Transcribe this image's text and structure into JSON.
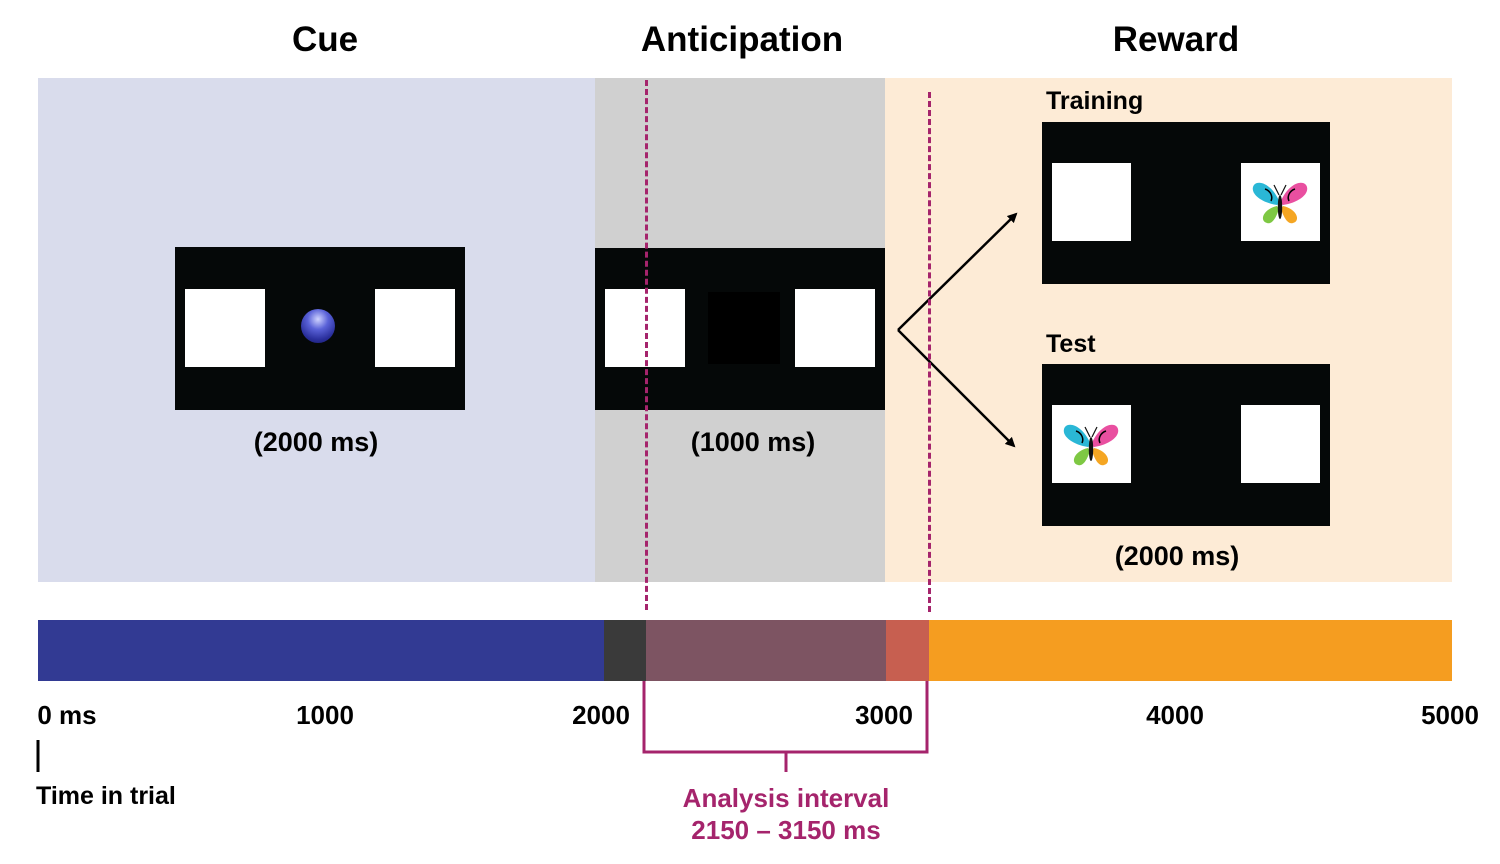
{
  "phases": {
    "cue": {
      "title": "Cue",
      "duration": "(2000 ms)"
    },
    "anticipation": {
      "title": "Anticipation",
      "duration": "(1000 ms)"
    },
    "reward": {
      "title": "Reward",
      "duration": "(2000 ms)",
      "training_label": "Training",
      "test_label": "Test"
    }
  },
  "colors": {
    "cue_bg": "#d9dcec",
    "anticipation_bg": "#d0d0d0",
    "reward_bg": "#fdebd6",
    "screen": "#050808",
    "cue_bar": "#323a93",
    "pre_analysis_bar": "#3a3a3a",
    "analysis_bar": "#7d5462",
    "overlap_bar": "#c75f50",
    "reward_bar": "#f59d20",
    "analysis_accent": "#a5246c"
  },
  "icons": {
    "cue_stimulus": "blue-sphere-icon",
    "reward_stimulus": "butterfly-icon"
  },
  "timeline": {
    "ticks": [
      "0 ms",
      "1000",
      "2000",
      "3000",
      "4000",
      "5000"
    ],
    "axis_label": "Time in trial",
    "segments_ms": [
      {
        "name": "cue",
        "start": 0,
        "end": 2000
      },
      {
        "name": "anticipation-pre-analysis",
        "start": 2000,
        "end": 2150
      },
      {
        "name": "anticipation-analysis",
        "start": 2150,
        "end": 3000
      },
      {
        "name": "reward-analysis-overlap",
        "start": 3000,
        "end": 3150
      },
      {
        "name": "reward",
        "start": 3150,
        "end": 5000
      }
    ]
  },
  "analysis": {
    "title": "Analysis interval",
    "range": "2150 – 3150 ms",
    "start_ms": 2150,
    "end_ms": 3150
  }
}
